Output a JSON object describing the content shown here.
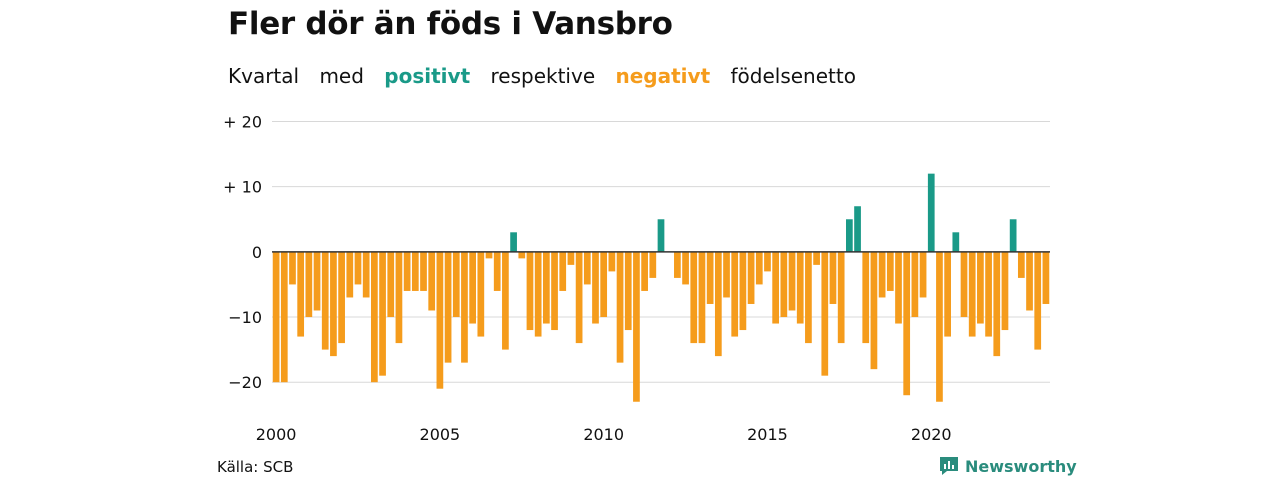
{
  "header": {
    "title": "Fler dör än föds i Vansbro",
    "subtitle_words": [
      "Kvartal",
      "med",
      "positivt",
      "respektive",
      "negativt",
      "födelsenetto"
    ]
  },
  "colors": {
    "positive": "#1a9a88",
    "negative": "#f59c1c",
    "grid": "#d8d8d8",
    "axis": "#333333"
  },
  "footer": {
    "source": "Källa: SCB",
    "brand": "Newsworthy"
  },
  "chart_data": {
    "type": "bar",
    "title": "Fler dör än föds i Vansbro",
    "subtitle": "Kvartal med positivt respektive negativt födelsenetto",
    "x_start_year": 2000,
    "x_ticks": [
      2000,
      2005,
      2010,
      2015,
      2020
    ],
    "y_ticks": [
      {
        "value": 20,
        "label": "+ 20"
      },
      {
        "value": 10,
        "label": "+ 10"
      },
      {
        "value": 0,
        "label": "0"
      },
      {
        "value": -10,
        "label": "−10"
      },
      {
        "value": -20,
        "label": "−20"
      }
    ],
    "ylim": [
      -23.5,
      21
    ],
    "values": [
      -20,
      -20,
      -5,
      -13,
      -10,
      -9,
      -15,
      -16,
      -14,
      -7,
      -5,
      -7,
      -20,
      -19,
      -10,
      -14,
      -6,
      -6,
      -6,
      -9,
      -21,
      -17,
      -10,
      -17,
      -11,
      -13,
      -1,
      -6,
      -15,
      3,
      -1,
      -12,
      -13,
      -11,
      -12,
      -6,
      -2,
      -14,
      -5,
      -11,
      -10,
      -3,
      -17,
      -12,
      -23,
      -6,
      -4,
      5,
      0,
      -4,
      -5,
      -14,
      -14,
      -8,
      -16,
      -7,
      -13,
      -12,
      -8,
      -5,
      -3,
      -11,
      -10,
      -9,
      -11,
      -14,
      -2,
      -19,
      -8,
      -14,
      5,
      7,
      -14,
      -18,
      -7,
      -6,
      -11,
      -22,
      -10,
      -7,
      12,
      -23,
      -13,
      3,
      -10,
      -13,
      -11,
      -13,
      -16,
      -12,
      5,
      -4,
      -9,
      -15,
      -8
    ]
  }
}
